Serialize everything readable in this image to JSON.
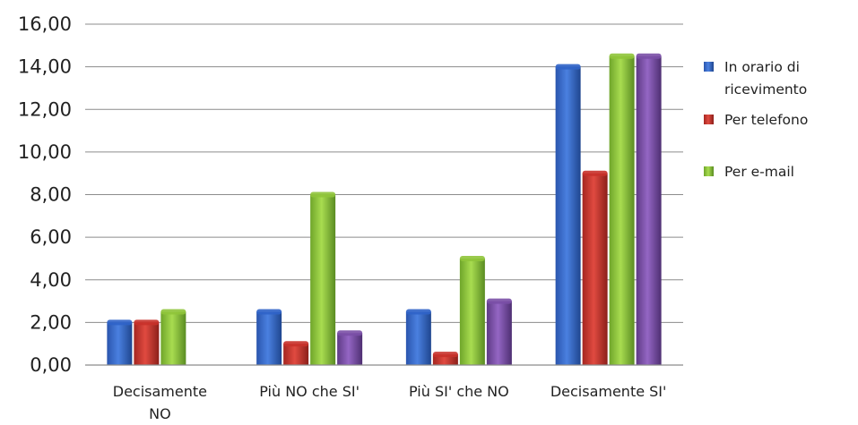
{
  "chart_data": {
    "type": "bar",
    "categories": [
      [
        "Decisamente",
        "NO"
      ],
      [
        "Più NO che SI'"
      ],
      [
        "Più SI' che NO"
      ],
      [
        "Decisamente SI'"
      ]
    ],
    "series": [
      {
        "name": "In orario di ricevimento",
        "legend_lines": [
          "In orario di",
          "ricevimento"
        ],
        "color": "#2f63c8",
        "values": [
          2.0,
          2.5,
          2.5,
          14.0
        ]
      },
      {
        "name": "Per telefono",
        "legend_lines": [
          "Per telefono"
        ],
        "color": "#c8312a",
        "values": [
          2.0,
          1.0,
          0.5,
          9.0
        ]
      },
      {
        "name": "Per e-mail",
        "legend_lines": [
          "Per e-mail"
        ],
        "color": "#8fc43a",
        "values": [
          2.5,
          8.0,
          5.0,
          14.5
        ]
      },
      {
        "name": "",
        "legend_lines": [],
        "color": "#7a4fa6",
        "values": [
          0,
          1.5,
          3.0,
          14.5
        ]
      }
    ],
    "yticks": [
      "0,00",
      "2,00",
      "4,00",
      "6,00",
      "8,00",
      "10,00",
      "12,00",
      "14,00",
      "16,00"
    ],
    "ylim": [
      0,
      16
    ],
    "grid": true,
    "legend_position": "right",
    "title": "",
    "xlabel": "",
    "ylabel": ""
  }
}
